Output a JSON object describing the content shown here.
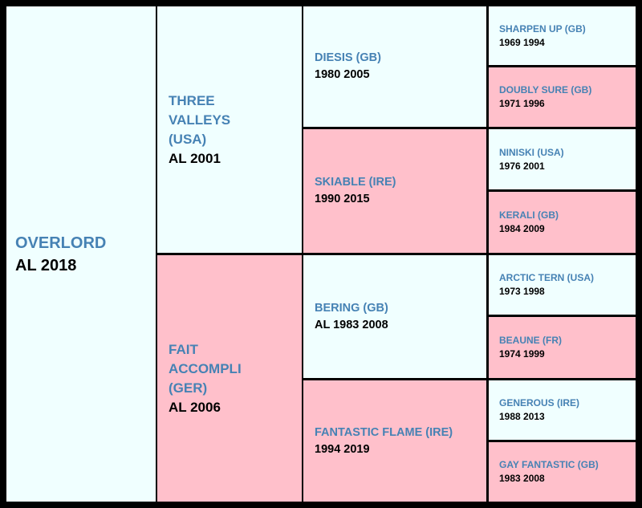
{
  "colors": {
    "male_bg": "#f0ffff",
    "female_bg": "#ffc0cb",
    "name_text": "#4682b4",
    "info_text": "#000000",
    "grid_lines": "#000000"
  },
  "pedigree": {
    "subject": {
      "name": "OVERLORD",
      "info": "AL 2018"
    },
    "sire": {
      "name": "THREE VALLEYS (USA)",
      "info": "AL 2001"
    },
    "dam": {
      "name": "FAIT ACCOMPLI (GER)",
      "info": "AL 2006"
    },
    "sire_sire": {
      "name": "DIESIS (GB)",
      "info": "1980 2005"
    },
    "sire_dam": {
      "name": "SKIABLE (IRE)",
      "info": "1990 2015"
    },
    "dam_sire": {
      "name": "BERING (GB)",
      "info": "AL 1983 2008"
    },
    "dam_dam": {
      "name": "FANTASTIC FLAME (IRE)",
      "info": "1994 2019"
    },
    "g3": [
      {
        "name": "SHARPEN UP (GB)",
        "info": "1969 1994"
      },
      {
        "name": "DOUBLY SURE (GB)",
        "info": "1971 1996"
      },
      {
        "name": "NINISKI (USA)",
        "info": "1976 2001"
      },
      {
        "name": "KERALI (GB)",
        "info": "1984 2009"
      },
      {
        "name": "ARCTIC TERN (USA)",
        "info": "1973 1998"
      },
      {
        "name": "BEAUNE (FR)",
        "info": "1974 1999"
      },
      {
        "name": "GENEROUS (IRE)",
        "info": "1988 2013"
      },
      {
        "name": "GAY FANTASTIC (GB)",
        "info": "1983 2008"
      }
    ]
  }
}
